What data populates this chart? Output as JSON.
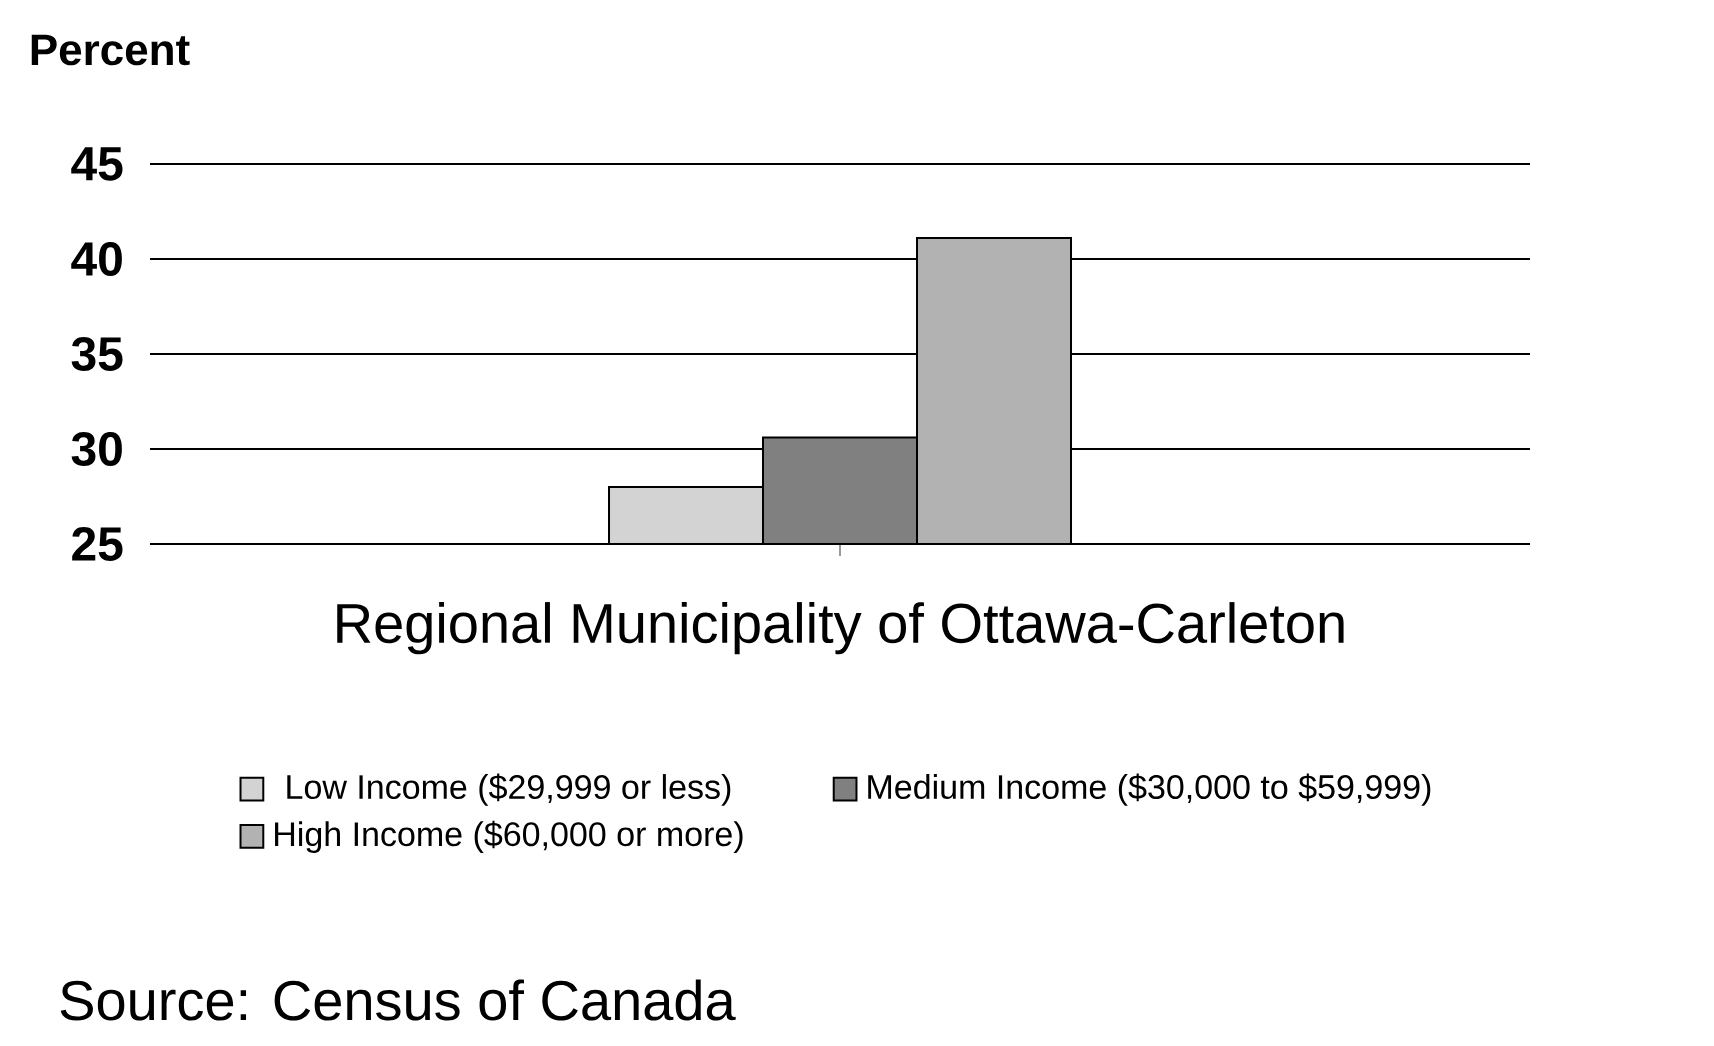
{
  "chart_data": {
    "type": "bar",
    "ylabel": "Percent",
    "categories": [
      "Regional Municipality of Ottawa-Carleton"
    ],
    "series": [
      {
        "name": "Low Income ($29,999 or less)",
        "color": "#d3d3d3",
        "values": [
          28
        ]
      },
      {
        "name": "Medium Income ($30,000 to $59,999)",
        "color": "#808080",
        "values": [
          30.6
        ]
      },
      {
        "name": "High Income ($60,000 or more)",
        "color": "#b2b2b2",
        "values": [
          41.1
        ]
      }
    ],
    "ylim": [
      25,
      45
    ],
    "yticks": [
      25,
      30,
      35,
      40,
      45
    ],
    "grid": "y",
    "legend": "bottom",
    "annotations": [
      "Source:  Census of Canada"
    ]
  }
}
